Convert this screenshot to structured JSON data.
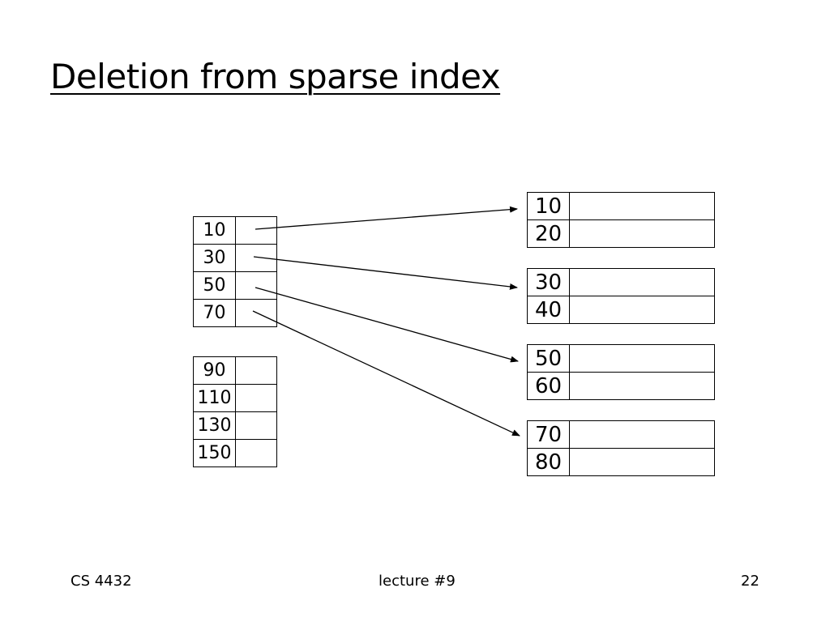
{
  "title": "Deletion from sparse index",
  "index_blocks": [
    [
      "10",
      "30",
      "50",
      "70"
    ],
    [
      "90",
      "110",
      "130",
      "150"
    ]
  ],
  "data_blocks": [
    [
      "10",
      "20"
    ],
    [
      "30",
      "40"
    ],
    [
      "50",
      "60"
    ],
    [
      "70",
      "80"
    ]
  ],
  "footer": {
    "left": "CS 4432",
    "center": "lecture #9",
    "right": "22"
  }
}
